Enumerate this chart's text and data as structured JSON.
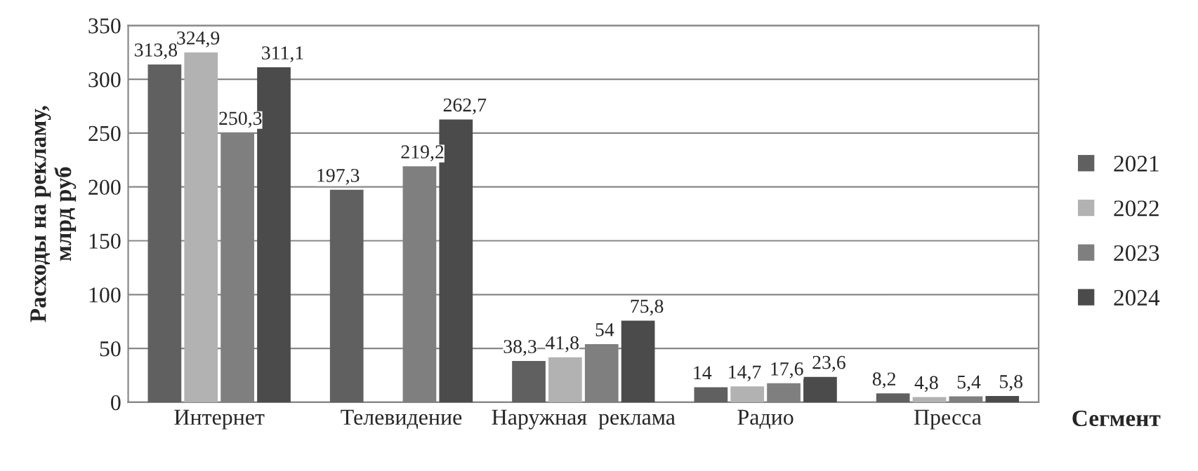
{
  "chart_data": {
    "type": "bar",
    "xlabel": "Сегмент",
    "ylabel": "Расходы на рекламу,\nмлрд руб",
    "categories": [
      "Интернет",
      "Телевидение",
      "Наружная  реклама",
      "Радио",
      "Пресса"
    ],
    "series": [
      {
        "name": "2021",
        "color": "#606060",
        "values": [
          313.8,
          197.3,
          38.3,
          14,
          8.2
        ],
        "value_labels": [
          "313,8",
          "197,3",
          "38,3",
          "14",
          "8,2"
        ]
      },
      {
        "name": "2022",
        "color": "#b2b2b2",
        "values": [
          324.9,
          null,
          41.8,
          14.7,
          4.8
        ],
        "value_labels": [
          "324,9",
          null,
          "41,8",
          "14,7",
          "4,8"
        ]
      },
      {
        "name": "2023",
        "color": "#7f7f7f",
        "values": [
          250.3,
          219.2,
          54,
          17.6,
          5.4
        ],
        "value_labels": [
          "250,3",
          "219,2",
          "54",
          "17,6",
          "5,4"
        ]
      },
      {
        "name": "2024",
        "color": "#4b4b4b",
        "values": [
          311.1,
          262.7,
          75.8,
          23.6,
          5.8
        ],
        "value_labels": [
          "311,1",
          "262,7",
          "75,8",
          "23,6",
          "5,8"
        ]
      }
    ],
    "ylim": [
      0,
      350
    ],
    "yticks": [
      0,
      50,
      100,
      150,
      200,
      250,
      300,
      350
    ],
    "grid": "y",
    "legend": "right"
  }
}
